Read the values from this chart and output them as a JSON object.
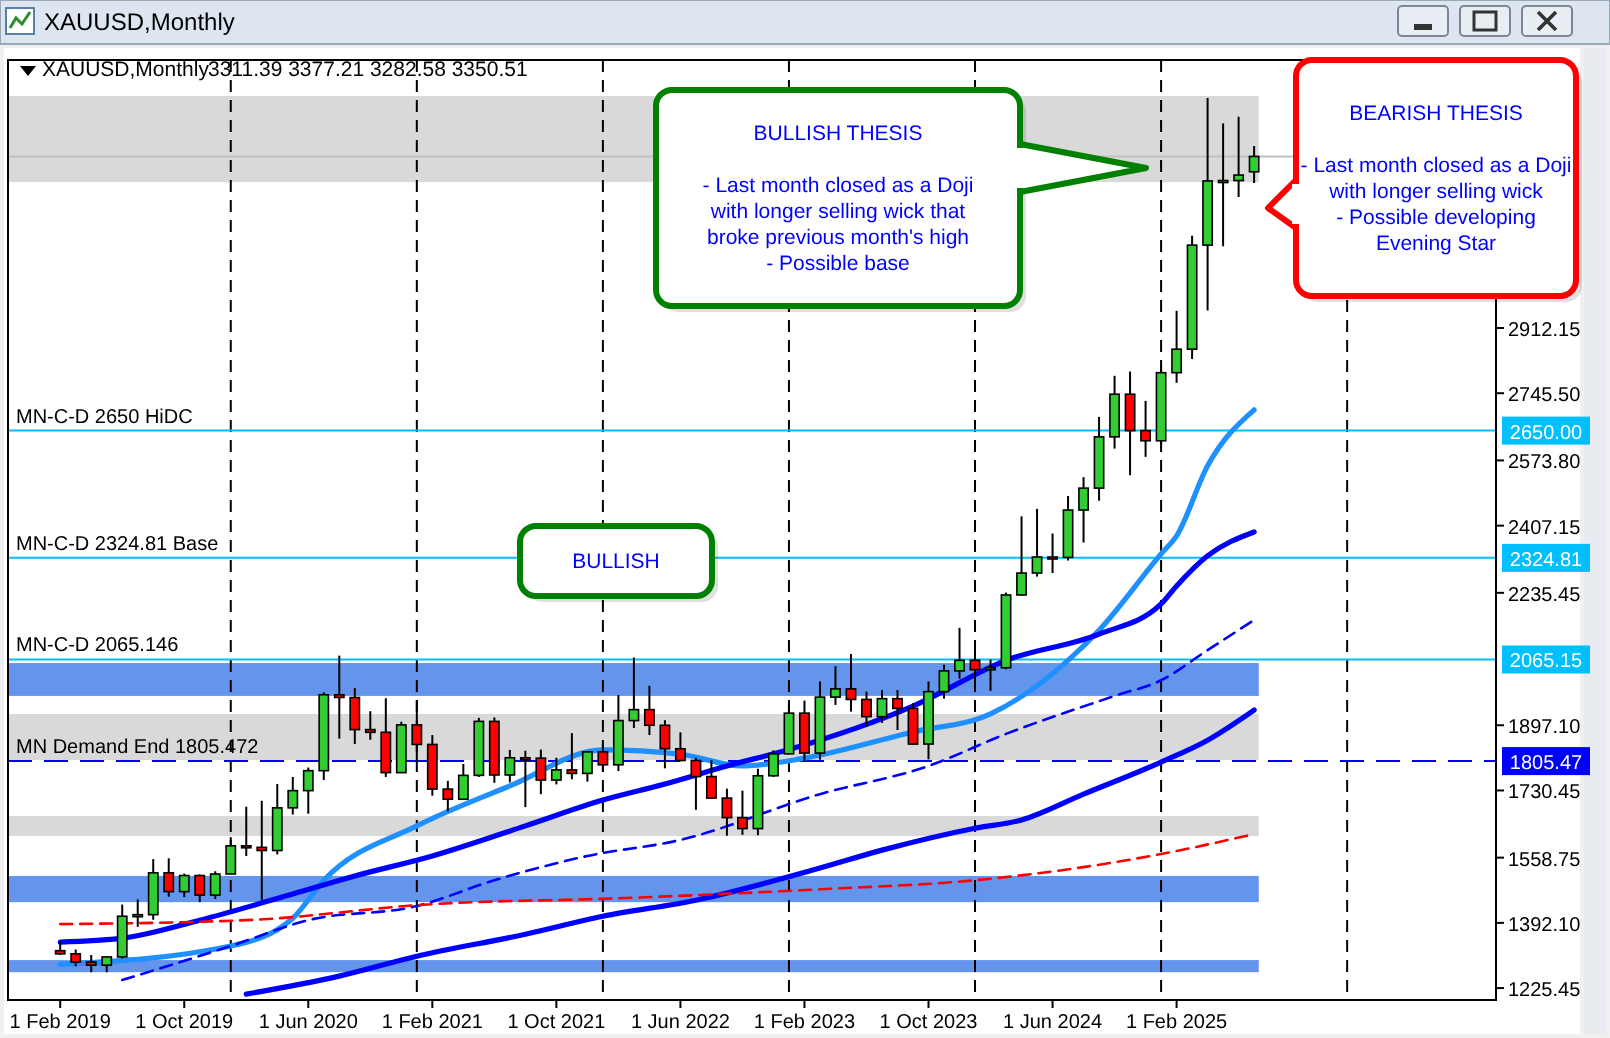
{
  "chart_data": {
    "type": "candlestick",
    "title": "XAUUSD,Monthly",
    "subtitle": "3311.39 3377.21 3282.58 3350.51",
    "x": [
      "2019-02",
      "2019-03",
      "2019-04",
      "2019-05",
      "2019-06",
      "2019-07",
      "2019-08",
      "2019-09",
      "2019-10",
      "2019-11",
      "2019-12",
      "2020-01",
      "2020-02",
      "2020-03",
      "2020-04",
      "2020-05",
      "2020-06",
      "2020-07",
      "2020-08",
      "2020-09",
      "2020-10",
      "2020-11",
      "2020-12",
      "2021-01",
      "2021-02",
      "2021-03",
      "2021-04",
      "2021-05",
      "2021-06",
      "2021-07",
      "2021-08",
      "2021-09",
      "2021-10",
      "2021-11",
      "2021-12",
      "2022-01",
      "2022-02",
      "2022-03",
      "2022-04",
      "2022-05",
      "2022-06",
      "2022-07",
      "2022-08",
      "2022-09",
      "2022-10",
      "2022-11",
      "2022-12",
      "2023-01",
      "2023-02",
      "2023-03",
      "2023-04",
      "2023-05",
      "2023-06",
      "2023-07",
      "2023-08",
      "2023-09",
      "2023-10",
      "2023-11",
      "2023-12",
      "2024-01",
      "2024-02",
      "2024-03",
      "2024-04",
      "2024-05",
      "2024-06",
      "2024-07",
      "2024-08",
      "2024-09",
      "2024-10",
      "2024-11",
      "2024-12",
      "2025-01",
      "2025-02",
      "2025-03",
      "2025-04",
      "2025-05",
      "2025-06",
      "2025-07"
    ],
    "ohlc": [
      [
        1321,
        1346,
        1310,
        1313
      ],
      [
        1313,
        1324,
        1281,
        1292
      ],
      [
        1292,
        1310,
        1266,
        1284
      ],
      [
        1284,
        1306,
        1266,
        1305
      ],
      [
        1305,
        1439,
        1301,
        1409
      ],
      [
        1409,
        1452,
        1382,
        1413
      ],
      [
        1413,
        1555,
        1400,
        1520
      ],
      [
        1520,
        1557,
        1459,
        1472
      ],
      [
        1472,
        1518,
        1458,
        1513
      ],
      [
        1513,
        1516,
        1445,
        1463
      ],
      [
        1463,
        1524,
        1453,
        1517
      ],
      [
        1517,
        1611,
        1517,
        1589
      ],
      [
        1589,
        1689,
        1563,
        1585
      ],
      [
        1585,
        1704,
        1451,
        1577
      ],
      [
        1577,
        1747,
        1567,
        1686
      ],
      [
        1686,
        1765,
        1669,
        1730
      ],
      [
        1730,
        1789,
        1671,
        1781
      ],
      [
        1781,
        1981,
        1757,
        1975
      ],
      [
        1975,
        2075,
        1863,
        1968
      ],
      [
        1968,
        1992,
        1849,
        1886
      ],
      [
        1886,
        1933,
        1860,
        1879
      ],
      [
        1879,
        1966,
        1765,
        1776
      ],
      [
        1776,
        1906,
        1775,
        1898
      ],
      [
        1898,
        1959,
        1802,
        1848
      ],
      [
        1848,
        1872,
        1717,
        1734
      ],
      [
        1734,
        1755,
        1677,
        1708
      ],
      [
        1708,
        1798,
        1706,
        1769
      ],
      [
        1769,
        1916,
        1765,
        1907
      ],
      [
        1907,
        1917,
        1750,
        1770
      ],
      [
        1770,
        1834,
        1751,
        1814
      ],
      [
        1814,
        1832,
        1688,
        1813
      ],
      [
        1813,
        1835,
        1721,
        1757
      ],
      [
        1757,
        1814,
        1746,
        1783
      ],
      [
        1783,
        1877,
        1759,
        1774
      ],
      [
        1774,
        1831,
        1753,
        1829
      ],
      [
        1829,
        1853,
        1780,
        1796
      ],
      [
        1796,
        1974,
        1780,
        1909
      ],
      [
        1909,
        2070,
        1890,
        1937
      ],
      [
        1937,
        1998,
        1872,
        1897
      ],
      [
        1897,
        1910,
        1787,
        1837
      ],
      [
        1837,
        1879,
        1805,
        1807
      ],
      [
        1807,
        1814,
        1681,
        1766
      ],
      [
        1766,
        1808,
        1709,
        1711
      ],
      [
        1711,
        1735,
        1615,
        1661
      ],
      [
        1661,
        1730,
        1617,
        1633
      ],
      [
        1633,
        1786,
        1616,
        1768
      ],
      [
        1768,
        1833,
        1765,
        1824
      ],
      [
        1824,
        1949,
        1823,
        1928
      ],
      [
        1928,
        1960,
        1805,
        1826
      ],
      [
        1826,
        2009,
        1809,
        1969
      ],
      [
        1969,
        2048,
        1949,
        1990
      ],
      [
        1990,
        2079,
        1932,
        1963
      ],
      [
        1963,
        1983,
        1893,
        1919
      ],
      [
        1919,
        1987,
        1903,
        1965
      ],
      [
        1965,
        1987,
        1885,
        1940
      ],
      [
        1940,
        1953,
        1848,
        1849
      ],
      [
        1849,
        2009,
        1810,
        1983
      ],
      [
        1983,
        2052,
        1965,
        2036
      ],
      [
        2036,
        2146,
        2016,
        2063
      ],
      [
        2063,
        2088,
        2002,
        2039
      ],
      [
        2039,
        2065,
        1985,
        2044
      ],
      [
        2044,
        2236,
        2040,
        2230
      ],
      [
        2230,
        2431,
        2228,
        2286
      ],
      [
        2286,
        2450,
        2277,
        2327
      ],
      [
        2327,
        2387,
        2286,
        2326
      ],
      [
        2326,
        2483,
        2318,
        2447
      ],
      [
        2447,
        2531,
        2364,
        2503
      ],
      [
        2503,
        2685,
        2471,
        2634
      ],
      [
        2634,
        2790,
        2604,
        2743
      ],
      [
        2743,
        2801,
        2536,
        2650
      ],
      [
        2650,
        2726,
        2583,
        2624
      ],
      [
        2624,
        2817,
        2614,
        2798
      ],
      [
        2798,
        2956,
        2772,
        2858
      ],
      [
        2858,
        3148,
        2833,
        3124
      ],
      [
        3124,
        3500,
        2957,
        3288
      ],
      [
        3288,
        3435,
        3121,
        3289
      ],
      [
        3289,
        3452,
        3247,
        3303
      ],
      [
        3311.39,
        3377.21,
        3282.58,
        3350.51
      ]
    ],
    "colors": [
      "#ff0000",
      "#ff0000",
      "#ff0000",
      "#32cd32",
      "#32cd32",
      "#32cd32",
      "#32cd32",
      "#ff0000",
      "#32cd32",
      "#ff0000",
      "#32cd32",
      "#32cd32",
      "#ff0000",
      "#ff0000",
      "#32cd32",
      "#32cd32",
      "#32cd32",
      "#32cd32",
      "#ff0000",
      "#ff0000",
      "#ff0000",
      "#ff0000",
      "#32cd32",
      "#ff0000",
      "#ff0000",
      "#ff0000",
      "#32cd32",
      "#32cd32",
      "#ff0000",
      "#32cd32",
      "#ff0000",
      "#ff0000",
      "#32cd32",
      "#ff0000",
      "#32cd32",
      "#ff0000",
      "#32cd32",
      "#32cd32",
      "#ff0000",
      "#ff0000",
      "#ff0000",
      "#ff0000",
      "#ff0000",
      "#ff0000",
      "#ff0000",
      "#32cd32",
      "#32cd32",
      "#32cd32",
      "#ff0000",
      "#32cd32",
      "#32cd32",
      "#ff0000",
      "#ff0000",
      "#32cd32",
      "#ff0000",
      "#ff0000",
      "#32cd32",
      "#32cd32",
      "#32cd32",
      "#ff0000",
      "#32cd32",
      "#32cd32",
      "#32cd32",
      "#32cd32",
      "#ff0000",
      "#32cd32",
      "#32cd32",
      "#32cd32",
      "#32cd32",
      "#ff0000",
      "#ff0000",
      "#32cd32",
      "#32cd32",
      "#32cd32",
      "#32cd32",
      "#32cd32",
      "#32cd32",
      "#32cd32"
    ],
    "series": [
      {
        "type": "line",
        "color": "#1e90ff",
        "line_style": "solid",
        "x": [
          "2019-02",
          "2020-01",
          "2020-05",
          "2020-07",
          "2021-01",
          "2021-07",
          "2022-01",
          "2022-06",
          "2022-10",
          "2023-02",
          "2023-09",
          "2024-02",
          "2024-07",
          "2024-09",
          "2025-01",
          "2025-02",
          "2025-04",
          "2025-07"
        ],
        "values": [
          1286,
          1333,
          1404,
          1501,
          1640,
          1742,
          1834,
          1823,
          1793,
          1813,
          1880,
          1926,
          2063,
          2140,
          2335,
          2381,
          2560,
          2703
        ]
      },
      {
        "type": "line",
        "color": "#0000ff",
        "line_style": "solid",
        "x": [
          "2019-02",
          "2019-06",
          "2019-11",
          "2020-05",
          "2020-09",
          "2021-02",
          "2021-08",
          "2022-01",
          "2022-05",
          "2022-09",
          "2023-01",
          "2023-09",
          "2024-03",
          "2024-09",
          "2025-01",
          "2025-02",
          "2025-04",
          "2025-07"
        ],
        "values": [
          1343,
          1353,
          1399,
          1466,
          1512,
          1563,
          1640,
          1706,
          1747,
          1793,
          1835,
          1946,
          2063,
          2130,
          2207,
          2253,
          2330,
          2391
        ]
      },
      {
        "type": "line",
        "color": "#0000ff",
        "line_style": "dashed",
        "x": [
          "2019-06",
          "2020-01",
          "2020-06",
          "2021-01",
          "2021-06",
          "2021-12",
          "2022-06",
          "2023-03",
          "2023-10",
          "2024-03",
          "2024-10",
          "2025-01",
          "2025-04",
          "2025-07"
        ],
        "values": [
          1246,
          1333,
          1399,
          1435,
          1501,
          1563,
          1604,
          1721,
          1793,
          1875,
          1972,
          2012,
          2089,
          2166
        ]
      },
      {
        "type": "line",
        "color": "#0000ff",
        "line_style": "solid",
        "x": [
          "2020-02",
          "2020-08",
          "2021-01",
          "2021-08",
          "2022-01",
          "2022-07",
          "2023-03",
          "2023-07",
          "2024-01",
          "2024-04",
          "2024-08",
          "2025-01",
          "2025-04",
          "2025-07"
        ],
        "values": [
          1210,
          1256,
          1307,
          1363,
          1409,
          1450,
          1532,
          1578,
          1634,
          1655,
          1721,
          1803,
          1859,
          1936
        ]
      },
      {
        "type": "line",
        "color": "#ff0000",
        "line_style": "dashed",
        "x": [
          "2019-02",
          "2020-02",
          "2021-02",
          "2022-02",
          "2023-03",
          "2024-01",
          "2025-01",
          "2025-07"
        ],
        "values": [
          1389,
          1399,
          1440,
          1455,
          1478,
          1501,
          1568,
          1619
        ]
      }
    ],
    "xlim": [
      "2018-10-20",
      "2026-10-19"
    ],
    "xticks": [
      {
        "value": "2019-02",
        "label": "1 Feb 2019"
      },
      {
        "value": "2019-10",
        "label": "1 Oct 2019"
      },
      {
        "value": "2020-06",
        "label": "1 Jun 2020"
      },
      {
        "value": "2021-02",
        "label": "1 Feb 2021"
      },
      {
        "value": "2021-10",
        "label": "1 Oct 2021"
      },
      {
        "value": "2022-06",
        "label": "1 Jun 2022"
      },
      {
        "value": "2023-02",
        "label": "1 Feb 2023"
      },
      {
        "value": "2023-10",
        "label": "1 Oct 2023"
      },
      {
        "value": "2024-06",
        "label": "1 Jun 2024"
      },
      {
        "value": "2025-02",
        "label": "1 Feb 2025"
      }
    ],
    "ylim": [
      1195,
      3597
    ],
    "yticks": [
      1225.45,
      {
        "value": 1392.1,
        "label": "1392.10"
      },
      1558.75,
      1730.45,
      {
        "value": 1897.1,
        "label": "1897.10"
      },
      2235.45,
      2407.15,
      {
        "value": 2573.8,
        "label": "2573.80"
      },
      {
        "value": 2745.5,
        "label": "2745.50"
      },
      2912.15
    ],
    "grid": false,
    "bands": [
      {
        "axis": "y",
        "from": 1972,
        "to": 2056,
        "color": "#6495ed"
      },
      {
        "axis": "y",
        "from": 1808,
        "to": 1926,
        "color": "#d9d9d9"
      },
      {
        "axis": "y",
        "from": 1614,
        "to": 1665,
        "color": "#d9d9d9"
      },
      {
        "axis": "y",
        "from": 1445,
        "to": 1512,
        "color": "#6495ed"
      },
      {
        "axis": "y",
        "from": 1266,
        "to": 1297,
        "color": "#6495ed"
      },
      {
        "axis": "y",
        "from": 3285,
        "to": 3505,
        "color": "#d9d9d9"
      }
    ],
    "ref_lines": [
      {
        "axis": "y",
        "value": 2650,
        "label": "MN-C-D 2650 HiDC",
        "color": "#00bfff",
        "line_style": "solid"
      },
      {
        "axis": "y",
        "value": 2324.81,
        "label": "MN-C-D 2324.81 Base",
        "color": "#00bfff",
        "line_style": "solid"
      },
      {
        "axis": "y",
        "value": 2065.146,
        "label": "MN-C-D 2065.146",
        "color": "#00bfff",
        "line_style": "solid"
      },
      {
        "axis": "y",
        "value": 1805.472,
        "label": "MN Demand End 1805.472",
        "color": "#0000ff",
        "line_style": "dashed"
      },
      {
        "axis": "y",
        "value": 3350.51,
        "label": null,
        "color": "#c0c0c0",
        "line_style": "solid"
      },
      {
        "axis": "x",
        "value": "2020-01",
        "label": null,
        "color": "#000000",
        "line_style": "dashed"
      },
      {
        "axis": "x",
        "value": "2021-01",
        "label": null,
        "color": "#000000",
        "line_style": "dashed"
      },
      {
        "axis": "x",
        "value": "2022-01",
        "label": null,
        "color": "#000000",
        "line_style": "dashed"
      },
      {
        "axis": "x",
        "value": "2023-01",
        "label": null,
        "color": "#000000",
        "line_style": "dashed"
      },
      {
        "axis": "x",
        "value": "2024-01",
        "label": null,
        "color": "#000000",
        "line_style": "dashed"
      },
      {
        "axis": "x",
        "value": "2025-01",
        "label": null,
        "color": "#000000",
        "line_style": "dashed"
      },
      {
        "axis": "x",
        "value": "2026-01",
        "label": null,
        "color": "#000000",
        "line_style": "dashed"
      }
    ],
    "annotations": [
      "BULLISH THESIS\n\n- Last month closed as a Doji\nwith longer selling wick that\nbroke previous month's high\n- Possible base",
      "BEARISH THESIS\n\n- Last month closed as a Doji\nwith longer selling wick\n- Possible developing\nEvening Star",
      "BULLISH",
      "2650.00",
      "2324.81",
      "2065.15",
      "1805.47"
    ]
  }
}
